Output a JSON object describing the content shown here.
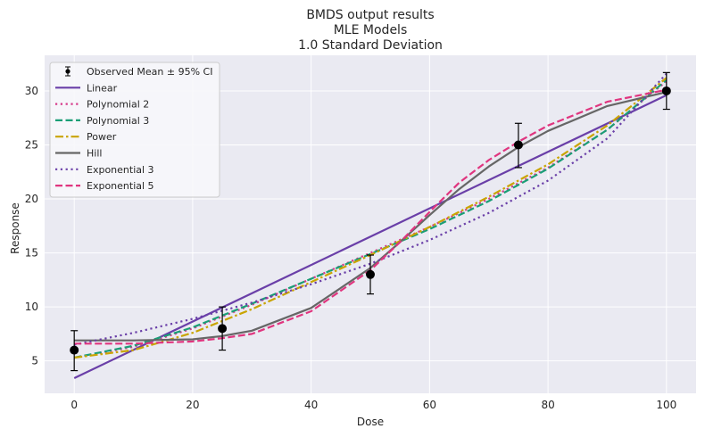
{
  "chart_data": {
    "type": "line",
    "title_lines": [
      "BMDS output results",
      "MLE Models",
      "1.0 Standard Deviation"
    ],
    "xlabel": "Dose",
    "ylabel": "Response",
    "xlim": [
      -5,
      105
    ],
    "ylim": [
      2,
      33.3
    ],
    "x_ticks": [
      0,
      20,
      40,
      60,
      80,
      100
    ],
    "y_ticks": [
      5,
      10,
      15,
      20,
      25,
      30
    ],
    "grid": true,
    "legend_position": "top-left",
    "observed": {
      "name": "Observed Mean ± 95% CI",
      "x": [
        0,
        25,
        50,
        75,
        100
      ],
      "y": [
        6,
        8,
        13,
        25,
        30
      ],
      "ci_low": [
        4.1,
        6.0,
        11.2,
        22.9,
        28.3
      ],
      "ci_high": [
        7.8,
        10.0,
        14.8,
        27.0,
        31.7
      ]
    },
    "series": [
      {
        "name": "Linear",
        "color": "#6a3fa8",
        "dash": "solid",
        "width": 2.2,
        "x": [
          0,
          100
        ],
        "y": [
          3.4,
          29.6
        ]
      },
      {
        "name": "Polynomial 2",
        "color": "#d63a8a",
        "dash": "dot",
        "width": 2.2,
        "x": [
          0,
          10,
          20,
          30,
          40,
          50,
          60,
          70,
          80,
          90,
          100
        ],
        "y": [
          5.3,
          6.3,
          8.0,
          10.2,
          12.6,
          15.0,
          17.4,
          20.0,
          22.9,
          26.4,
          30.9
        ]
      },
      {
        "name": "Polynomial 3",
        "color": "#1a9e76",
        "dash": "dash",
        "width": 2.2,
        "x": [
          0,
          10,
          20,
          30,
          40,
          50,
          60,
          70,
          80,
          90,
          100
        ],
        "y": [
          5.3,
          6.4,
          8.1,
          10.3,
          12.6,
          14.9,
          17.2,
          19.8,
          22.8,
          26.4,
          31.0
        ]
      },
      {
        "name": "Power",
        "color": "#c9a400",
        "dash": "dashdot",
        "width": 2.2,
        "x": [
          0,
          10,
          20,
          30,
          40,
          50,
          60,
          70,
          80,
          90,
          100
        ],
        "y": [
          5.3,
          6.0,
          7.6,
          9.8,
          12.3,
          14.8,
          17.4,
          20.2,
          23.2,
          26.8,
          31.2
        ]
      },
      {
        "name": "Hill",
        "color": "#666666",
        "dash": "solid",
        "width": 2.2,
        "x": [
          0,
          10,
          20,
          25,
          30,
          40,
          50,
          55,
          60,
          65,
          70,
          75,
          80,
          90,
          100
        ],
        "y": [
          6.9,
          6.9,
          7.0,
          7.3,
          7.8,
          9.9,
          13.6,
          16.0,
          18.5,
          20.9,
          23.0,
          24.8,
          26.3,
          28.6,
          29.9
        ]
      },
      {
        "name": "Exponential 3",
        "color": "#6a3fa8",
        "dash": "dot",
        "width": 2.2,
        "x": [
          0,
          10,
          20,
          30,
          40,
          50,
          60,
          70,
          80,
          90,
          100
        ],
        "y": [
          6.5,
          7.6,
          8.9,
          10.4,
          12.1,
          14.0,
          16.2,
          18.7,
          21.7,
          25.6,
          31.6
        ]
      },
      {
        "name": "Exponential 5",
        "color": "#e0357f",
        "dash": "dash",
        "width": 2.2,
        "x": [
          0,
          10,
          20,
          25,
          30,
          40,
          50,
          55,
          60,
          65,
          70,
          75,
          80,
          90,
          100
        ],
        "y": [
          6.6,
          6.6,
          6.8,
          7.1,
          7.5,
          9.6,
          13.4,
          16.0,
          18.8,
          21.5,
          23.6,
          25.3,
          26.8,
          29.0,
          30.1
        ]
      }
    ]
  }
}
